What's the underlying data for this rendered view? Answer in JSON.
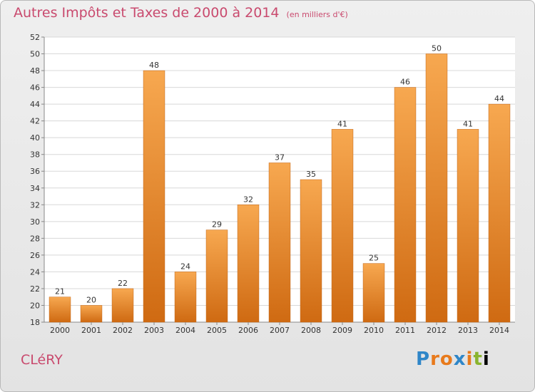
{
  "header": {
    "title": "Autres Impôts et Taxes de 2000 à 2014",
    "subtitle": "(en milliers d'€)"
  },
  "footer": {
    "commune": "CLéRY",
    "brand": "Proxiti"
  },
  "colors": {
    "bar_light": "#f7a850",
    "bar_dark": "#cf6a12",
    "title": "#c94a6e"
  },
  "chart_data": {
    "type": "bar",
    "title": "Autres Impôts et Taxes de 2000 à 2014",
    "subtitle": "(en milliers d'€)",
    "xlabel": "",
    "ylabel": "",
    "categories": [
      "2000",
      "2001",
      "2002",
      "2003",
      "2004",
      "2005",
      "2006",
      "2007",
      "2008",
      "2009",
      "2010",
      "2011",
      "2012",
      "2013",
      "2014"
    ],
    "values": [
      21,
      20,
      22,
      48,
      24,
      29,
      32,
      37,
      35,
      41,
      25,
      46,
      50,
      41,
      44
    ],
    "ylim": [
      18,
      52
    ],
    "yticks": [
      18,
      20,
      22,
      24,
      26,
      28,
      30,
      32,
      34,
      36,
      38,
      40,
      42,
      44,
      46,
      48,
      50,
      52
    ],
    "grid": true,
    "legend": "none"
  }
}
